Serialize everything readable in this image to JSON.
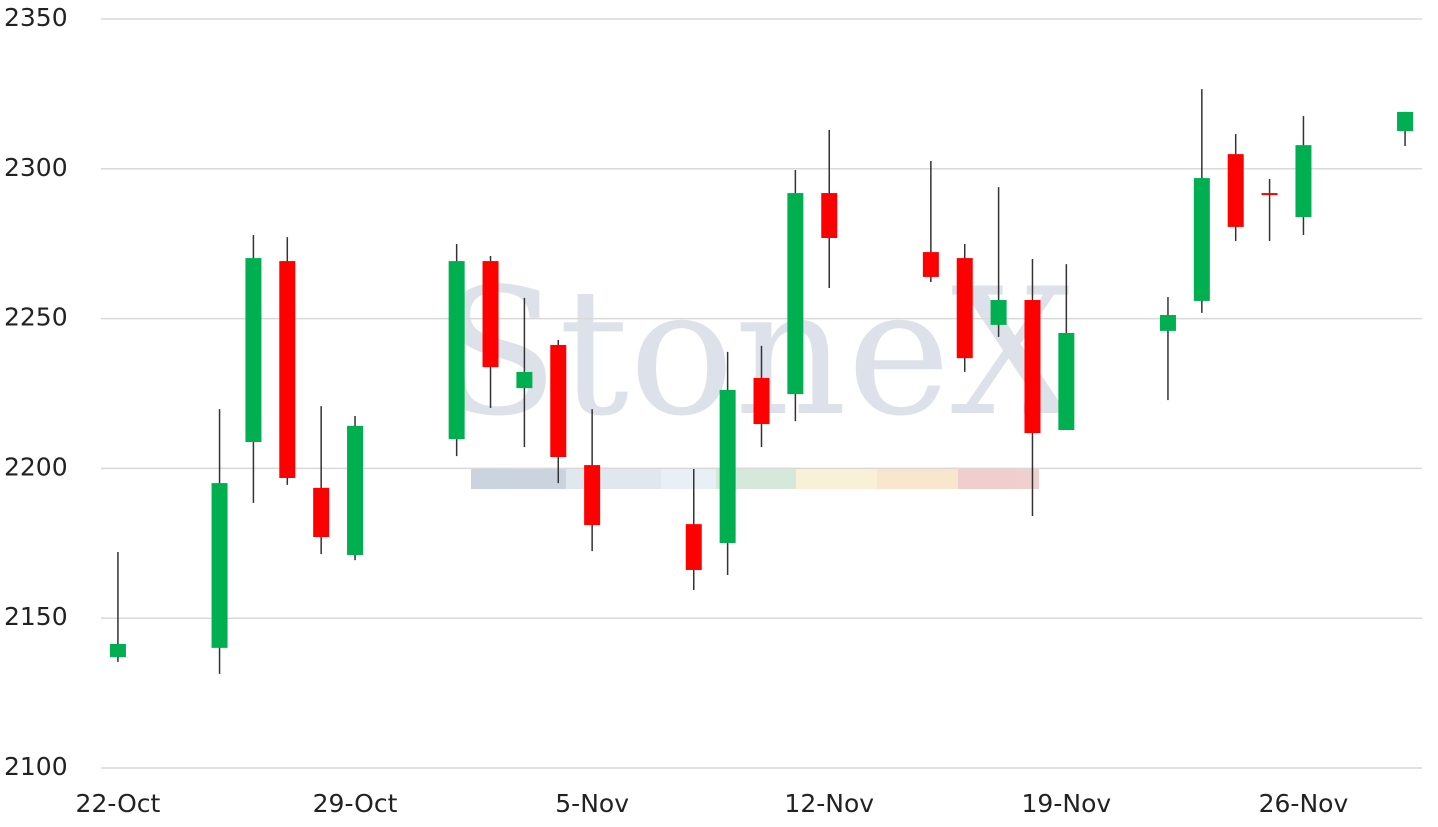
{
  "chart_data": {
    "type": "candlestick",
    "watermark": "StoneX",
    "categories": [
      "22-Oct",
      null,
      null,
      null,
      null,
      null,
      null,
      "29-Oct",
      null,
      null,
      null,
      null,
      null,
      null,
      "5-Nov",
      null,
      null,
      null,
      null,
      null,
      null,
      "12-Nov",
      null,
      null,
      null,
      null,
      null,
      null,
      "19-Nov",
      null,
      null,
      null,
      null,
      null,
      null,
      "26-Nov",
      null,
      null,
      null
    ],
    "open": [
      2137,
      null,
      null,
      2140.1,
      2208.8,
      2269.2,
      2193.5,
      2171.1,
      null,
      null,
      2209.8,
      2269.2,
      2226.8,
      2241.2,
      2201.1,
      null,
      null,
      2181.4,
      2175.1,
      2230.2,
      2224.8,
      2291.9,
      null,
      null,
      2272.2,
      2270.2,
      2247.9,
      2256.2,
      2212.8,
      null,
      null,
      2245.9,
      2255.9,
      2304.9,
      2291.9,
      2283.9,
      null,
      null,
      2312.6
    ],
    "high": [
      2172.1,
      null,
      null,
      2219.8,
      2277.9,
      2277.2,
      2220.8,
      2217.5,
      null,
      null,
      2274.9,
      2270.9,
      2256.9,
      2242.9,
      2219.8,
      null,
      null,
      2199.8,
      2238.9,
      2240.9,
      2299.6,
      2313,
      null,
      null,
      2302.6,
      2274.9,
      2293.9,
      2269.9,
      2268.2,
      null,
      null,
      2257.2,
      2326.6,
      2311.6,
      2296.6,
      2317.6,
      null,
      null,
      2319
    ],
    "low": [
      2135.4,
      null,
      null,
      2131.4,
      2188.5,
      2194.5,
      2171.4,
      2169.4,
      null,
      null,
      2204.1,
      2220.2,
      2207.1,
      2195.1,
      2172.4,
      null,
      null,
      2159.4,
      2164.4,
      2207.1,
      2215.8,
      2260.2,
      null,
      null,
      2262.2,
      2232.2,
      2243.9,
      2184.1,
      2212.8,
      null,
      null,
      2222.8,
      2251.9,
      2275.9,
      2275.9,
      2277.9,
      null,
      null,
      2307.6
    ],
    "close": [
      2141.4,
      null,
      null,
      2195.1,
      2270.2,
      2196.8,
      2177.1,
      2214.2,
      null,
      null,
      2269.2,
      2233.8,
      2232.2,
      2203.8,
      2181.1,
      null,
      null,
      2166.1,
      2226.2,
      2214.8,
      2291.9,
      2276.9,
      null,
      null,
      2263.9,
      2236.8,
      2256.2,
      2211.8,
      2245.2,
      null,
      null,
      2251.2,
      2296.9,
      2280.6,
      2291.3,
      2307.9,
      null,
      null,
      2319
    ],
    "up_color": "#00b050",
    "down_color": "#ff0000",
    "wick_color": "#333333",
    "ylim": [
      2100,
      2350
    ],
    "yticks": [
      2100,
      2150,
      2200,
      2250,
      2300,
      2350
    ],
    "grid": true
  }
}
